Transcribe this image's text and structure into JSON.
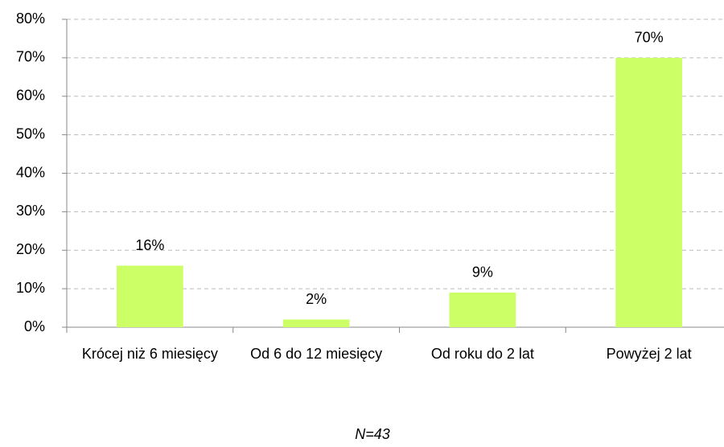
{
  "chart_data": {
    "type": "bar",
    "categories": [
      "Krócej niż 6 miesięcy",
      "Od 6 do 12 miesięcy",
      "Od roku do 2 lat",
      "Powyżej 2 lat"
    ],
    "values": [
      16,
      2,
      9,
      70
    ],
    "value_labels": [
      "16%",
      "2%",
      "9%",
      "70%"
    ],
    "color": "#ccff66",
    "ylim": [
      0,
      80
    ],
    "yticks": [
      {
        "value": 0,
        "label": "0%"
      },
      {
        "value": 10,
        "label": "10%"
      },
      {
        "value": 20,
        "label": "20%"
      },
      {
        "value": 30,
        "label": "30%"
      },
      {
        "value": 40,
        "label": "40%"
      },
      {
        "value": 50,
        "label": "50%"
      },
      {
        "value": 60,
        "label": "60%"
      },
      {
        "value": 70,
        "label": "70%"
      },
      {
        "value": 80,
        "label": "80%"
      }
    ],
    "grid": true,
    "note": "N=43"
  }
}
